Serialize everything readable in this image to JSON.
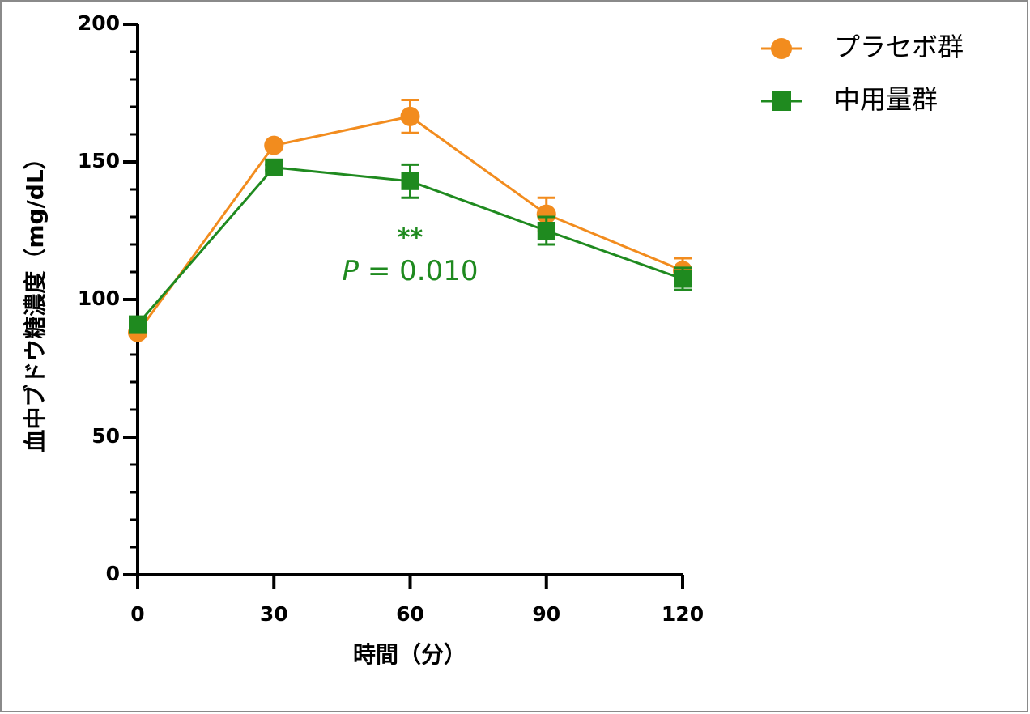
{
  "chart_data": {
    "type": "line",
    "xlabel": "時間（分）",
    "ylabel": "血中ブドウ糖濃度（mg/dL）",
    "x": [
      0,
      30,
      60,
      90,
      120
    ],
    "series": [
      {
        "name": "プラセボ群",
        "color": "#f28c1e",
        "marker": "circle",
        "values": [
          88,
          156,
          166.5,
          131,
          110.5
        ],
        "errors": [
          1,
          1,
          6,
          6,
          4.5
        ]
      },
      {
        "name": "中用量群",
        "color": "#1f8a1f",
        "marker": "square",
        "values": [
          91,
          148,
          143,
          125,
          107.5
        ],
        "errors": [
          1,
          1,
          6,
          5,
          4
        ]
      }
    ],
    "annotations": [
      {
        "text": "**",
        "x": 60,
        "y": 122,
        "color": "#1f8a1f"
      },
      {
        "parts": [
          "P",
          " = 0.010"
        ],
        "x": 60,
        "y": 110,
        "color": "#1f8a1f"
      }
    ],
    "xlim": [
      0,
      120
    ],
    "xticks": [
      0,
      30,
      60,
      90,
      120
    ],
    "ylim": [
      0,
      200
    ],
    "yticks": [
      0,
      50,
      100,
      150,
      200
    ],
    "yminorticks": [
      10,
      20,
      30,
      40,
      60,
      70,
      80,
      90,
      110,
      120,
      130,
      140,
      160,
      170,
      180,
      190
    ],
    "legend": "top-right"
  }
}
